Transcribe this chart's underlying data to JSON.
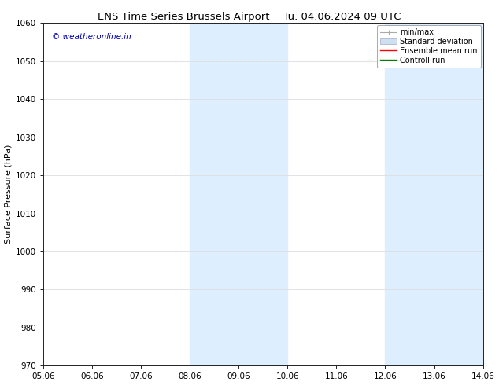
{
  "title_left": "ENS Time Series Brussels Airport",
  "title_right": "Tu. 04.06.2024 09 UTC",
  "ylabel": "Surface Pressure (hPa)",
  "ylim": [
    970,
    1060
  ],
  "yticks": [
    970,
    980,
    990,
    1000,
    1010,
    1020,
    1030,
    1040,
    1050,
    1060
  ],
  "xtick_labels": [
    "05.06",
    "06.06",
    "07.06",
    "08.06",
    "09.06",
    "10.06",
    "11.06",
    "12.06",
    "13.06",
    "14.06"
  ],
  "xlim_days": [
    0,
    9
  ],
  "shaded_bands": [
    {
      "x_start": 3,
      "x_end": 5,
      "color": "#ddeeff"
    },
    {
      "x_start": 7,
      "x_end": 9,
      "color": "#ddeeff"
    }
  ],
  "watermark_text": "© weatheronline.in",
  "watermark_color": "#0000bb",
  "bg_color": "#ffffff",
  "grid_color": "#dddddd",
  "title_fontsize": 9.5,
  "ylabel_fontsize": 8,
  "tick_fontsize": 7.5,
  "legend_fontsize": 7,
  "watermark_fontsize": 7.5,
  "legend_gray": "#aaaaaa",
  "legend_patch_color": "#cce0f0",
  "legend_patch_edge": "#aaaacc"
}
